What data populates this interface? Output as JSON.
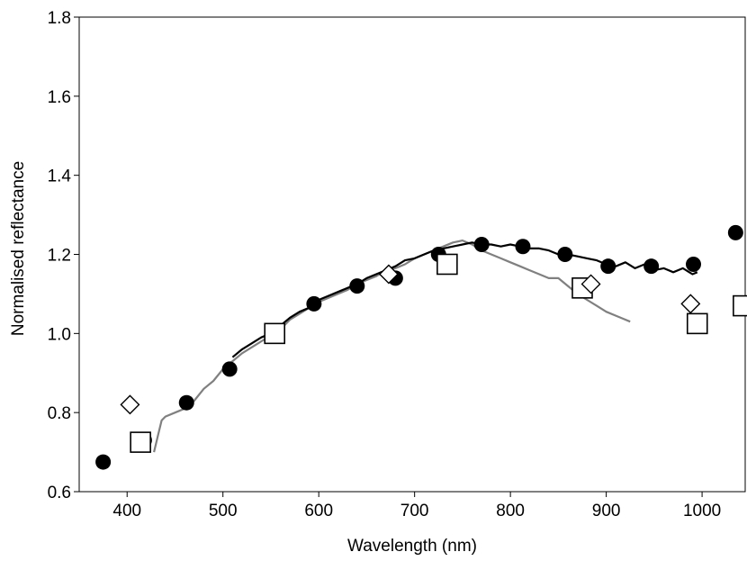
{
  "chart_data": {
    "type": "scatter",
    "title": "",
    "xlabel": "Wavelength (nm)",
    "ylabel": "Normalised reflectance",
    "xlim": [
      350,
      1045
    ],
    "ylim": [
      0.6,
      1.8
    ],
    "x_ticks": [
      "400",
      "500",
      "600",
      "700",
      "800",
      "900",
      "1000"
    ],
    "y_ticks": [
      "0.6",
      "0.8",
      "1.0",
      "1.2",
      "1.4",
      "1.6",
      "1.8"
    ],
    "grid": false,
    "legend": "none",
    "series": [
      {
        "marker": "filled-circle",
        "color": "#000000",
        "points": [
          [
            375,
            0.675
          ],
          [
            418,
            0.73
          ],
          [
            462,
            0.825
          ],
          [
            507,
            0.91
          ],
          [
            551,
            1.0
          ],
          [
            595,
            1.075
          ],
          [
            640,
            1.12
          ],
          [
            680,
            1.14
          ],
          [
            725,
            1.2
          ],
          [
            770,
            1.225
          ],
          [
            813,
            1.22
          ],
          [
            857,
            1.2
          ],
          [
            902,
            1.17
          ],
          [
            947,
            1.17
          ],
          [
            991,
            1.175
          ],
          [
            1035,
            1.255
          ]
        ]
      },
      {
        "marker": "open-square",
        "color": "#000000",
        "points": [
          [
            414,
            0.725
          ],
          [
            554,
            1.0
          ],
          [
            734,
            1.175
          ],
          [
            875,
            1.115
          ],
          [
            995,
            1.025
          ],
          [
            1043,
            1.07
          ]
        ]
      },
      {
        "marker": "open-diamond",
        "color": "#000000",
        "points": [
          [
            403,
            0.82
          ],
          [
            673,
            1.15
          ],
          [
            884,
            1.125
          ],
          [
            988,
            1.075
          ]
        ]
      },
      {
        "marker": "line",
        "color": "#808080",
        "points": [
          [
            428,
            0.7
          ],
          [
            432,
            0.74
          ],
          [
            436,
            0.78
          ],
          [
            440,
            0.79
          ],
          [
            450,
            0.8
          ],
          [
            460,
            0.81
          ],
          [
            470,
            0.83
          ],
          [
            480,
            0.86
          ],
          [
            490,
            0.88
          ],
          [
            500,
            0.91
          ],
          [
            510,
            0.93
          ],
          [
            520,
            0.95
          ],
          [
            530,
            0.965
          ],
          [
            540,
            0.98
          ],
          [
            550,
            0.995
          ],
          [
            560,
            1.01
          ],
          [
            570,
            1.035
          ],
          [
            580,
            1.05
          ],
          [
            590,
            1.065
          ],
          [
            600,
            1.08
          ],
          [
            610,
            1.09
          ],
          [
            620,
            1.1
          ],
          [
            630,
            1.11
          ],
          [
            640,
            1.125
          ],
          [
            650,
            1.135
          ],
          [
            660,
            1.145
          ],
          [
            670,
            1.16
          ],
          [
            680,
            1.165
          ],
          [
            690,
            1.175
          ],
          [
            700,
            1.19
          ],
          [
            710,
            1.2
          ],
          [
            720,
            1.21
          ],
          [
            730,
            1.22
          ],
          [
            740,
            1.23
          ],
          [
            750,
            1.235
          ],
          [
            760,
            1.225
          ],
          [
            770,
            1.21
          ],
          [
            780,
            1.2
          ],
          [
            790,
            1.19
          ],
          [
            800,
            1.18
          ],
          [
            810,
            1.17
          ],
          [
            820,
            1.16
          ],
          [
            830,
            1.15
          ],
          [
            840,
            1.14
          ],
          [
            850,
            1.14
          ],
          [
            860,
            1.12
          ],
          [
            870,
            1.1
          ],
          [
            880,
            1.085
          ],
          [
            890,
            1.07
          ],
          [
            900,
            1.055
          ],
          [
            910,
            1.045
          ],
          [
            920,
            1.035
          ],
          [
            925,
            1.03
          ]
        ]
      },
      {
        "marker": "line",
        "color": "#000000",
        "points": [
          [
            510,
            0.94
          ],
          [
            520,
            0.96
          ],
          [
            530,
            0.975
          ],
          [
            540,
            0.99
          ],
          [
            550,
            1.0
          ],
          [
            560,
            1.02
          ],
          [
            570,
            1.04
          ],
          [
            580,
            1.055
          ],
          [
            590,
            1.065
          ],
          [
            600,
            1.085
          ],
          [
            610,
            1.095
          ],
          [
            620,
            1.105
          ],
          [
            630,
            1.115
          ],
          [
            640,
            1.125
          ],
          [
            650,
            1.14
          ],
          [
            660,
            1.15
          ],
          [
            670,
            1.16
          ],
          [
            680,
            1.17
          ],
          [
            690,
            1.185
          ],
          [
            700,
            1.19
          ],
          [
            710,
            1.2
          ],
          [
            720,
            1.21
          ],
          [
            730,
            1.215
          ],
          [
            740,
            1.22
          ],
          [
            750,
            1.225
          ],
          [
            760,
            1.23
          ],
          [
            770,
            1.225
          ],
          [
            780,
            1.225
          ],
          [
            790,
            1.22
          ],
          [
            800,
            1.225
          ],
          [
            810,
            1.22
          ],
          [
            820,
            1.215
          ],
          [
            830,
            1.215
          ],
          [
            840,
            1.21
          ],
          [
            850,
            1.2
          ],
          [
            860,
            1.2
          ],
          [
            870,
            1.195
          ],
          [
            880,
            1.19
          ],
          [
            890,
            1.185
          ],
          [
            900,
            1.175
          ],
          [
            910,
            1.17
          ],
          [
            920,
            1.18
          ],
          [
            930,
            1.165
          ],
          [
            940,
            1.175
          ],
          [
            950,
            1.16
          ],
          [
            960,
            1.165
          ],
          [
            970,
            1.155
          ],
          [
            980,
            1.165
          ],
          [
            990,
            1.15
          ],
          [
            995,
            1.155
          ]
        ]
      }
    ]
  }
}
